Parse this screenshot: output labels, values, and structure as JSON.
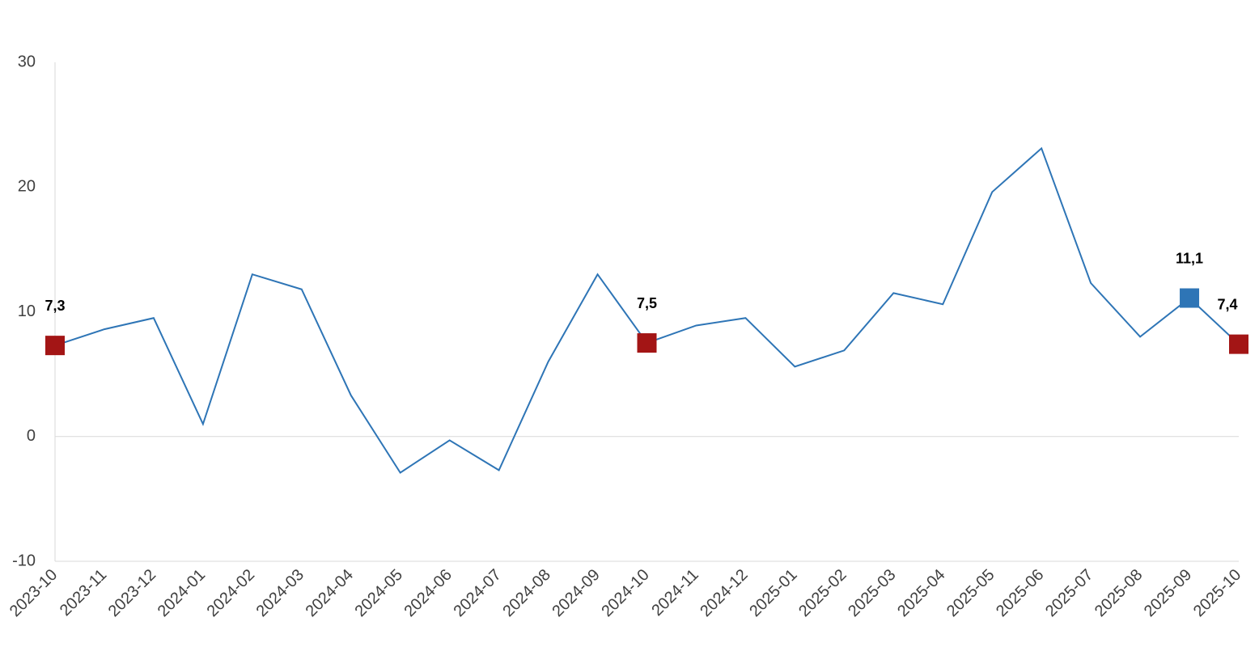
{
  "chart_data": {
    "type": "line",
    "categories": [
      "2023-10",
      "2023-11",
      "2023-12",
      "2024-01",
      "2024-02",
      "2024-03",
      "2024-04",
      "2024-05",
      "2024-06",
      "2024-07",
      "2024-08",
      "2024-09",
      "2024-10",
      "2024-11",
      "2024-12",
      "2025-01",
      "2025-02",
      "2025-03",
      "2025-04",
      "2025-05",
      "2025-06",
      "2025-07",
      "2025-08",
      "2025-09",
      "2025-10"
    ],
    "series": [
      {
        "color": "#2e75b6",
        "values": [
          7.3,
          8.6,
          9.5,
          1.0,
          13.0,
          11.8,
          3.3,
          -2.9,
          -0.3,
          -2.7,
          6.0,
          13.0,
          7.5,
          8.9,
          9.5,
          5.6,
          6.9,
          11.5,
          10.6,
          19.6,
          23.1,
          12.3,
          8.0,
          11.1,
          7.4
        ],
        "value_labels": [
          "7,3",
          null,
          null,
          null,
          null,
          null,
          null,
          null,
          null,
          null,
          null,
          null,
          "7,5",
          null,
          null,
          null,
          null,
          null,
          null,
          null,
          null,
          null,
          null,
          "11,1",
          "7,4"
        ],
        "marker_colors": [
          "#a31515",
          null,
          null,
          null,
          null,
          null,
          null,
          null,
          null,
          null,
          null,
          null,
          "#a31515",
          null,
          null,
          null,
          null,
          null,
          null,
          null,
          null,
          null,
          null,
          "#2e75b6",
          "#a31515"
        ]
      }
    ],
    "ylim": [
      -10,
      30
    ],
    "yticks": [
      -10,
      0,
      10,
      20,
      30
    ],
    "grid": false
  }
}
